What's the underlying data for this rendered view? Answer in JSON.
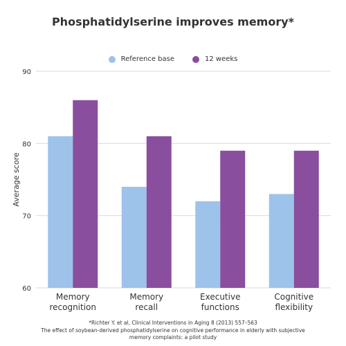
{
  "chart_data": {
    "type": "bar",
    "title": "Phosphatidylserine improves memory*",
    "ylabel": "Average score",
    "xlabel": "",
    "categories": [
      [
        "Memory",
        "recognition"
      ],
      [
        "Memory",
        "recall"
      ],
      [
        "Executive",
        "functions"
      ],
      [
        "Cognitive",
        "flexibility"
      ]
    ],
    "series": [
      {
        "name": "Reference base",
        "color": "#9DC3EA",
        "values": [
          81,
          74,
          72,
          73
        ]
      },
      {
        "name": "12 weeks",
        "color": "#8A4E9E",
        "values": [
          86,
          81,
          79,
          79
        ]
      }
    ],
    "ylim": [
      60,
      90
    ],
    "yticks": [
      60,
      70,
      80,
      90
    ],
    "grid": true,
    "legend_position": "top-center"
  },
  "footnote": {
    "line1": "*Richter Y. et al, Clinical Interventions in Aging 8 (2013) 557–563",
    "line2": "The effect of soybean-derived phosphatidylserine on cognitive performance in elderly with subjective memory complaints: a pilot study"
  }
}
